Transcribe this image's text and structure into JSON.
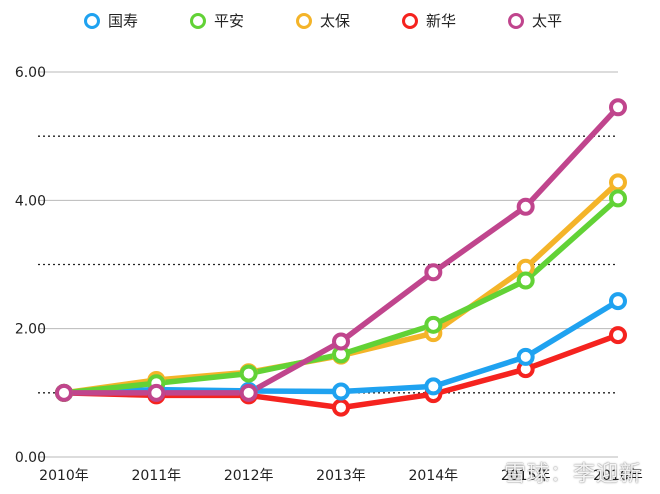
{
  "chart_data": {
    "type": "line",
    "categories": [
      "2010年",
      "2011年",
      "2012年",
      "2013年",
      "2014年",
      "2015年",
      "2016年"
    ],
    "series": [
      {
        "name": "国寿",
        "color": "#1fa2f0",
        "values": [
          1.0,
          1.05,
          1.03,
          1.02,
          1.1,
          1.56,
          2.43
        ]
      },
      {
        "name": "平安",
        "color": "#62d236",
        "values": [
          1.0,
          1.15,
          1.3,
          1.6,
          2.06,
          2.75,
          4.03
        ]
      },
      {
        "name": "太保",
        "color": "#f4b429",
        "values": [
          1.0,
          1.2,
          1.32,
          1.58,
          1.93,
          2.95,
          4.28
        ]
      },
      {
        "name": "新华",
        "color": "#f5231f",
        "values": [
          1.0,
          0.96,
          0.96,
          0.77,
          0.98,
          1.37,
          1.9
        ]
      },
      {
        "name": "太平",
        "color": "#c0458d",
        "values": [
          1.0,
          1.0,
          1.0,
          1.8,
          2.88,
          3.9,
          5.45
        ]
      }
    ],
    "ylim": [
      0,
      6
    ],
    "yticks": [
      "0.00",
      "2.00",
      "4.00",
      "6.00"
    ],
    "grid": "solid lines at major ticks, dotted lines at midpoints",
    "legend": "top"
  },
  "watermark": "雪球：李迎新"
}
